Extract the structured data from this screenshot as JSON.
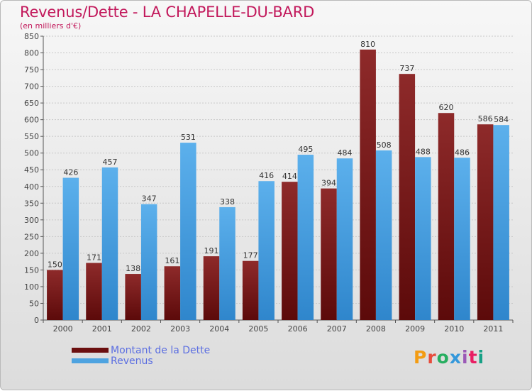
{
  "header": {
    "title": "Revenus/Dette - LA CHAPELLE-DU-BARD",
    "subtitle": "(en milliers d'€)"
  },
  "brand": {
    "logo_text": "Proxiti",
    "colors": [
      "#f39c12",
      "#e74c3c",
      "#27ae60",
      "#3498db",
      "#9b59b6",
      "#e91e63",
      "#16a085"
    ]
  },
  "colors": {
    "dette": "#7a1818",
    "revenus": "#4ea3e0",
    "title": "#c2185b"
  },
  "chart_data": {
    "type": "bar",
    "title": "Revenus/Dette - LA CHAPELLE-DU-BARD",
    "subtitle": "(en milliers d'€)",
    "xlabel": "",
    "ylabel": "",
    "ylim": [
      0,
      850
    ],
    "yticks": [
      0,
      50,
      100,
      150,
      200,
      250,
      300,
      350,
      400,
      450,
      500,
      550,
      600,
      650,
      700,
      750,
      800,
      850
    ],
    "grid": true,
    "legend_position": "bottom-left",
    "categories": [
      "2000",
      "2001",
      "2002",
      "2003",
      "2004",
      "2005",
      "2006",
      "2007",
      "2008",
      "2009",
      "2010",
      "2011"
    ],
    "series": [
      {
        "name": "Montant de la Dette",
        "color": "#7a1818",
        "values": [
          150,
          171,
          138,
          161,
          191,
          177,
          414,
          394,
          810,
          737,
          620,
          586
        ]
      },
      {
        "name": "Revenus",
        "color": "#4ea3e0",
        "values": [
          426,
          457,
          347,
          531,
          338,
          416,
          495,
          484,
          508,
          488,
          486,
          584
        ]
      }
    ]
  }
}
